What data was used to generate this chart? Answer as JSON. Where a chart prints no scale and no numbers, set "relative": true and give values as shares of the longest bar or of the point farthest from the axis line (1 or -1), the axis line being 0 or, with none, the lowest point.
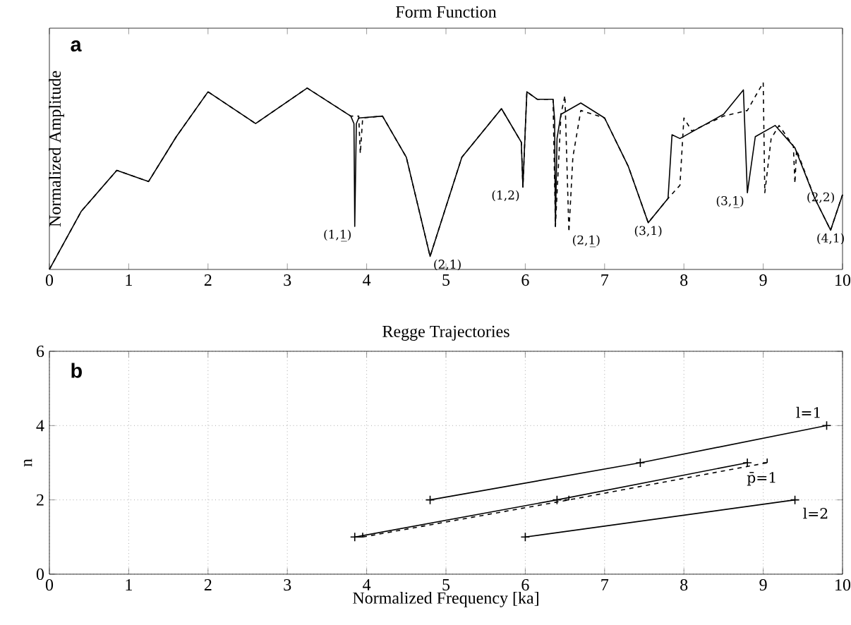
{
  "chart_data": [
    {
      "type": "line",
      "title": "Form Function",
      "ylabel": "Normalized Amplitude",
      "relative": true,
      "xlim": [
        0,
        10
      ],
      "xticks": [
        0,
        1,
        2,
        3,
        4,
        5,
        6,
        7,
        8,
        9,
        10
      ],
      "series": [
        {
          "color": "#000000",
          "line_style": "solid",
          "x": [
            0,
            0.4,
            0.85,
            1.25,
            1.6,
            2.0,
            2.6,
            3.25,
            3.8,
            3.84,
            3.85,
            3.87,
            3.9,
            4.2,
            4.5,
            4.8,
            5.2,
            5.7,
            5.95,
            5.97,
            6.0,
            6.02,
            6.15,
            6.35,
            6.37,
            6.38,
            6.4,
            6.45,
            6.7,
            7.0,
            7.3,
            7.55,
            7.8,
            7.85,
            7.95,
            8.5,
            8.75,
            8.8,
            8.9,
            9.15,
            9.4,
            9.65,
            9.85,
            10
          ],
          "values": [
            0,
            0.31,
            0.53,
            0.47,
            0.71,
            0.95,
            0.78,
            0.97,
            0.82,
            0.78,
            0.23,
            0.78,
            0.81,
            0.82,
            0.6,
            0.07,
            0.6,
            0.86,
            0.68,
            0.44,
            0.75,
            0.95,
            0.91,
            0.91,
            0.8,
            0.23,
            0.7,
            0.83,
            0.89,
            0.81,
            0.55,
            0.25,
            0.38,
            0.72,
            0.7,
            0.83,
            0.96,
            0.41,
            0.71,
            0.77,
            0.65,
            0.38,
            0.21,
            0.4
          ]
        },
        {
          "color": "#000000",
          "line_style": "dashed",
          "x": [
            0,
            0.4,
            0.85,
            1.25,
            1.6,
            2.0,
            2.6,
            3.25,
            3.8,
            3.9,
            3.92,
            3.95,
            4.2,
            4.5,
            4.8,
            5.2,
            5.7,
            5.95,
            5.97,
            6.02,
            6.15,
            6.35,
            6.38,
            6.45,
            6.5,
            6.55,
            6.6,
            6.7,
            7.0,
            7.3,
            7.55,
            7.8,
            7.95,
            8.0,
            8.1,
            8.5,
            8.8,
            9.0,
            9.02,
            9.1,
            9.2,
            9.38,
            9.4,
            9.42,
            9.65,
            9.85,
            10
          ],
          "values": [
            0,
            0.31,
            0.53,
            0.47,
            0.71,
            0.95,
            0.78,
            0.97,
            0.82,
            0.82,
            0.62,
            0.81,
            0.82,
            0.6,
            0.07,
            0.6,
            0.86,
            0.68,
            0.44,
            0.95,
            0.91,
            0.91,
            0.23,
            0.83,
            0.93,
            0.2,
            0.6,
            0.85,
            0.81,
            0.55,
            0.25,
            0.38,
            0.45,
            0.81,
            0.74,
            0.82,
            0.85,
            1.0,
            0.41,
            0.7,
            0.77,
            0.66,
            0.46,
            0.64,
            0.38,
            0.21,
            0.4
          ]
        }
      ],
      "annotations": [
        "a",
        {
          "text": "(1,1̲)",
          "x": 3.85,
          "y": 0.23
        },
        {
          "text": "(2,1)",
          "x": 4.8,
          "y": 0.07
        },
        {
          "text": "(1,2)",
          "x": 5.97,
          "y": 0.44
        },
        {
          "text": "(2,1̲)",
          "x": 6.55,
          "y": 0.2
        },
        {
          "text": "(3,1)",
          "x": 7.55,
          "y": 0.25
        },
        {
          "text": "(3,1̲)",
          "x": 8.8,
          "y": 0.41
        },
        {
          "text": "(2,2)",
          "x": 9.4,
          "y": 0.46
        },
        {
          "text": "(4,1)",
          "x": 9.85,
          "y": 0.21
        }
      ]
    },
    {
      "type": "line",
      "title": "Regge Trajectories",
      "xlabel": "Normalized Frequency [ka]",
      "ylabel": "n",
      "xlim": [
        0,
        10
      ],
      "ylim": [
        0,
        6
      ],
      "xticks": [
        0,
        1,
        2,
        3,
        4,
        5,
        6,
        7,
        8,
        9,
        10
      ],
      "yticks": [
        0,
        2,
        4,
        6
      ],
      "grid": true,
      "marker": "cross",
      "series": [
        {
          "name": "l=1",
          "color": "#000000",
          "line_style": "solid",
          "x": [
            4.8,
            7.45,
            9.8
          ],
          "values": [
            2,
            3,
            4
          ]
        },
        {
          "name": "l=2",
          "color": "#000000",
          "line_style": "solid",
          "x": [
            6.0,
            9.4
          ],
          "values": [
            1,
            2
          ]
        },
        {
          "name": "p̄=1",
          "color": "#000000",
          "line_style": "solid",
          "x": [
            3.85,
            6.4,
            8.8
          ],
          "values": [
            1,
            2,
            3
          ]
        },
        {
          "color": "#000000",
          "line_style": "dashed",
          "x": [
            3.95,
            6.55,
            9.05
          ],
          "values": [
            1,
            2,
            3
          ]
        }
      ],
      "annotations": [
        "b"
      ]
    }
  ]
}
